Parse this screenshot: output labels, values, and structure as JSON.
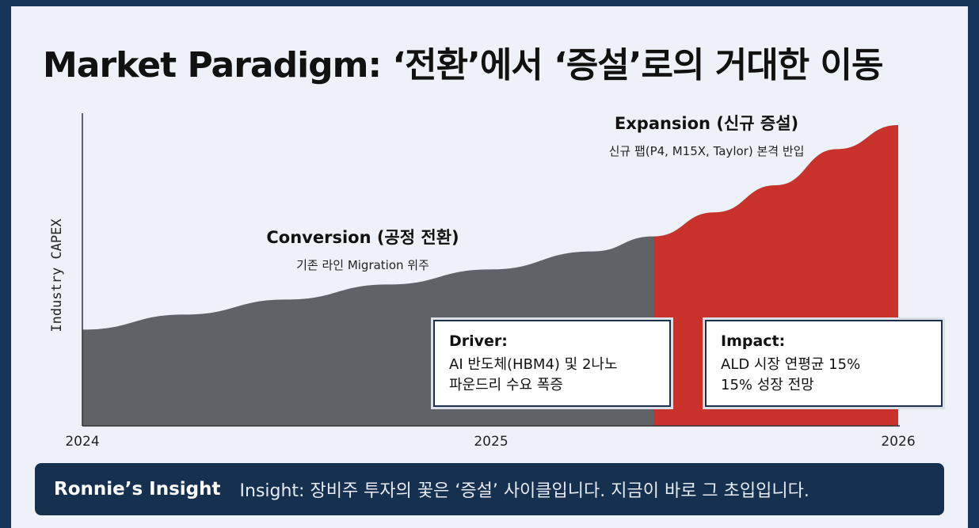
{
  "title": "Market Paradigm: ‘전환’에서 ‘증설’로의 거대한 이동",
  "colors": {
    "conversion": "#5f6368",
    "expansion": "#c8322a",
    "frame": "#16304f",
    "background": "#eef2f8"
  },
  "chart_data": {
    "type": "area",
    "ylabel": "Industry CAPEX",
    "x_ticks": [
      "2024",
      "2025",
      "2026"
    ],
    "xlim": [
      2024,
      2026
    ],
    "ylim": [
      0,
      100
    ],
    "grid": false,
    "series": [
      {
        "name": "Conversion (공정 전환)",
        "x": [
          2024.0,
          2024.25,
          2024.5,
          2024.75,
          2025.0,
          2025.25,
          2025.4
        ],
        "values": [
          32,
          37,
          42,
          47,
          52,
          58,
          63
        ]
      },
      {
        "name": "Expansion (신규 증설)",
        "x": [
          2025.4,
          2025.55,
          2025.7,
          2025.85,
          2026.0
        ],
        "values": [
          63,
          71,
          80,
          92,
          100
        ]
      }
    ],
    "annotations": [
      {
        "title": "Conversion (공정 전환)",
        "subtitle": "기존 라인 Migration 위주"
      },
      {
        "title": "Expansion (신규 증설)",
        "subtitle": "신규 팹(P4, M15X, Taylor) 본격 반입"
      }
    ]
  },
  "boxes": {
    "driver": {
      "heading": "Driver:",
      "line1": "AI 반도체(HBM4) 및 2나노",
      "line2": "파운드리 수요 폭증"
    },
    "impact": {
      "heading": "Impact:",
      "line1": "ALD 시장 연평균 15%",
      "line2": "15% 성장 전망"
    }
  },
  "insight": {
    "label": "Ronnie’s Insight",
    "text": "Insight: 장비주 투자의 꽃은 ‘증설’ 사이클입니다. 지금이 바로 그 초입입니다."
  }
}
